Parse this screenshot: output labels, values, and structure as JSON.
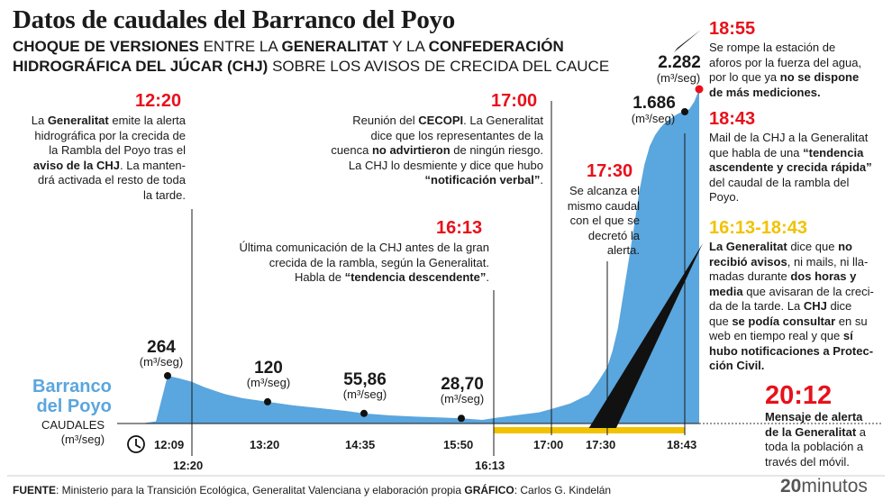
{
  "title": "Datos de caudales del Barranco del Poyo",
  "subtitle": {
    "line1": [
      {
        "t": "CHOQUE DE VERSIONES",
        "b": true
      },
      {
        "t": " ENTRE LA ",
        "b": false
      },
      {
        "t": "GENERALITAT",
        "b": true
      },
      {
        "t": " Y LA ",
        "b": false
      },
      {
        "t": "CONFEDERACIÓN",
        "b": true
      }
    ],
    "line2": [
      {
        "t": "HIDROGRÁFICA DEL JÚCAR (CHJ)",
        "b": true
      },
      {
        "t": " SOBRE LOS AVISOS DE CRECIDA DEL CAUCE",
        "b": false
      }
    ]
  },
  "series_name_line1": "Barranco",
  "series_name_line2": "del Poyo",
  "quantity_line1": "CAUDALES",
  "quantity_line2": "(m³/seg)",
  "unit": "(m³/seg)",
  "colors": {
    "area": "#5aa6de",
    "red": "#e8101a",
    "yellow": "#f2c200",
    "black": "#111111"
  },
  "clock_icon": "clock-icon",
  "chart_data": {
    "type": "area",
    "x_label": "",
    "y_label": "CAUDALES (m³/seg)",
    "series": [
      {
        "name": "Barranco del Poyo",
        "x": [
          "12:00",
          "12:05",
          "12:09",
          "12:14",
          "12:20",
          "12:30",
          "12:45",
          "13:00",
          "13:20",
          "13:40",
          "14:00",
          "14:20",
          "14:35",
          "14:55",
          "15:15",
          "15:35",
          "15:50",
          "16:05",
          "16:13",
          "16:30",
          "16:50",
          "17:00",
          "17:10",
          "17:20",
          "17:25",
          "17:30",
          "17:35",
          "17:40",
          "17:45",
          "17:50",
          "17:55",
          "18:00",
          "18:05",
          "18:10",
          "18:15",
          "18:20",
          "18:25",
          "18:30",
          "18:35",
          "18:40",
          "18:43",
          "18:47",
          "18:51",
          "18:55"
        ],
        "y": [
          0,
          12,
          264,
          250,
          230,
          200,
          165,
          140,
          120,
          100,
          85,
          70,
          55.86,
          45,
          38,
          33,
          28.7,
          20,
          30,
          45,
          62,
          80,
          110,
          160,
          230,
          310,
          400,
          520,
          700,
          880,
          1060,
          1250,
          1400,
          1500,
          1560,
          1600,
          1630,
          1650,
          1670,
          1685,
          1686,
          1760,
          1960,
          2282
        ]
      }
    ],
    "ylim": [
      0,
      2282
    ],
    "x_ticks": [
      {
        "label": "12:09",
        "x": "12:09",
        "row": "upper"
      },
      {
        "label": "12:20",
        "x": "12:20",
        "row": "lower"
      },
      {
        "label": "13:20",
        "x": "13:20",
        "row": "upper"
      },
      {
        "label": "14:35",
        "x": "14:35",
        "row": "upper"
      },
      {
        "label": "15:50",
        "x": "15:50",
        "row": "upper"
      },
      {
        "label": "16:13",
        "x": "16:13",
        "row": "lower"
      },
      {
        "label": "17:00",
        "x": "17:00",
        "row": "upper"
      },
      {
        "label": "17:30",
        "x": "17:30",
        "row": "upper"
      },
      {
        "label": "18:43",
        "x": "18:43",
        "row": "upper"
      }
    ],
    "value_labels": [
      {
        "x": "12:09",
        "value": "264"
      },
      {
        "x": "13:20",
        "value": "120"
      },
      {
        "x": "14:35",
        "value": "55,86"
      },
      {
        "x": "15:50",
        "value": "28,70"
      },
      {
        "x": "18:43",
        "value": "1.686"
      },
      {
        "x": "18:55",
        "value": "2.282"
      }
    ],
    "yellow_period": {
      "from": "16:13",
      "to": "18:43"
    }
  },
  "annotations": {
    "t1220": {
      "time": "12:20",
      "text": [
        [
          {
            "t": "La ",
            "b": false
          },
          {
            "t": "Generalitat",
            "b": true
          },
          {
            "t": " emite la alerta",
            "b": false
          }
        ],
        [
          {
            "t": "hidrográfica por la crecida de",
            "b": false
          }
        ],
        [
          {
            "t": "la Rambla del Poyo tras el",
            "b": false
          }
        ],
        [
          {
            "t": "aviso de la CHJ",
            "b": true
          },
          {
            "t": ". La manten-",
            "b": false
          }
        ],
        [
          {
            "t": "drá activada el resto de toda",
            "b": false
          }
        ],
        [
          {
            "t": "la tarde.",
            "b": false
          }
        ]
      ]
    },
    "t1700": {
      "time": "17:00",
      "text": [
        [
          {
            "t": "Reunión del ",
            "b": false
          },
          {
            "t": "CECOPI",
            "b": true
          },
          {
            "t": ". La Generalitat",
            "b": false
          }
        ],
        [
          {
            "t": "dice que los representantes de la",
            "b": false
          }
        ],
        [
          {
            "t": "cuenca ",
            "b": false
          },
          {
            "t": "no advirtieron",
            "b": true
          },
          {
            "t": " de ningún riesgo.",
            "b": false
          }
        ],
        [
          {
            "t": "La CHJ lo desmiente y dice que hubo",
            "b": false
          }
        ],
        [
          {
            "t": "“notificación verbal”",
            "b": true
          },
          {
            "t": ".",
            "b": false
          }
        ]
      ]
    },
    "t1613": {
      "time": "16:13",
      "text": [
        [
          {
            "t": "Última comunicación de la CHJ antes de la gran",
            "b": false
          }
        ],
        [
          {
            "t": "crecida de la rambla, según la Generalitat.",
            "b": false
          }
        ],
        [
          {
            "t": "Habla de ",
            "b": false
          },
          {
            "t": "“tendencia descendente”",
            "b": true
          },
          {
            "t": ".",
            "b": false
          }
        ]
      ]
    },
    "t1730": {
      "time": "17:30",
      "text": [
        [
          {
            "t": "Se alcanza el",
            "b": false
          }
        ],
        [
          {
            "t": "mismo caudal",
            "b": false
          }
        ],
        [
          {
            "t": "con el que se",
            "b": false
          }
        ],
        [
          {
            "t": "decretó la",
            "b": false
          }
        ],
        [
          {
            "t": "alerta.",
            "b": false
          }
        ]
      ]
    },
    "t1855": {
      "time": "18:55",
      "text": [
        [
          {
            "t": "Se rompe la estación de",
            "b": false
          }
        ],
        [
          {
            "t": "aforos por la fuerza del agua,",
            "b": false
          }
        ],
        [
          {
            "t": "por lo que ya ",
            "b": false
          },
          {
            "t": "no se dispone",
            "b": true
          }
        ],
        [
          {
            "t": "de más mediciones.",
            "b": true
          }
        ]
      ]
    },
    "t1843": {
      "time": "18:43",
      "text": [
        [
          {
            "t": "Mail de la CHJ a la Generalitat",
            "b": false
          }
        ],
        [
          {
            "t": "que habla de una ",
            "b": false
          },
          {
            "t": "“tendencia",
            "b": true
          }
        ],
        [
          {
            "t": "ascendente y crecida rápida”",
            "b": true
          }
        ],
        [
          {
            "t": "del caudal de la rambla del",
            "b": false
          }
        ],
        [
          {
            "t": "Poyo.",
            "b": false
          }
        ]
      ]
    },
    "t1613_1843": {
      "time": "16:13-18:43",
      "text": [
        [
          {
            "t": "La Generalitat",
            "b": true
          },
          {
            "t": " dice que ",
            "b": false
          },
          {
            "t": "no",
            "b": true
          }
        ],
        [
          {
            "t": "recibió avisos",
            "b": true
          },
          {
            "t": ", ni mails, ni lla-",
            "b": false
          }
        ],
        [
          {
            "t": "madas durante ",
            "b": false
          },
          {
            "t": "dos horas y",
            "b": true
          }
        ],
        [
          {
            "t": "media",
            "b": true
          },
          {
            "t": " que avisaran de la creci-",
            "b": false
          }
        ],
        [
          {
            "t": "da de la tarde. La ",
            "b": false
          },
          {
            "t": "CHJ",
            "b": true
          },
          {
            "t": " dice",
            "b": false
          }
        ],
        [
          {
            "t": "que ",
            "b": false
          },
          {
            "t": "se podía consultar",
            "b": true
          },
          {
            "t": " en su",
            "b": false
          }
        ],
        [
          {
            "t": "web en tiempo real y que ",
            "b": false
          },
          {
            "t": "sí",
            "b": true
          }
        ],
        [
          {
            "t": "hubo notificaciones a Protec-",
            "b": true
          }
        ],
        [
          {
            "t": "ción Civil.",
            "b": true
          }
        ]
      ]
    },
    "t2012": {
      "time": "20:12",
      "text": [
        [
          {
            "t": "Mensaje de alerta",
            "b": true
          }
        ],
        [
          {
            "t": "de la Generalitat",
            "b": true
          },
          {
            "t": " a",
            "b": false
          }
        ],
        [
          {
            "t": "toda la población a",
            "b": false
          }
        ],
        [
          {
            "t": "través del móvil.",
            "b": false
          }
        ]
      ]
    }
  },
  "footer": [
    {
      "t": "FUENTE",
      "b": true
    },
    {
      "t": ": Ministerio para la Transición Ecológica, Generalitat Valenciana y elaboración propia     ",
      "b": false
    },
    {
      "t": "GRÁFICO",
      "b": true
    },
    {
      "t": ": Carlos G. Kindelán",
      "b": false
    }
  ],
  "brand": {
    "number": "20",
    "word": "minutos"
  }
}
